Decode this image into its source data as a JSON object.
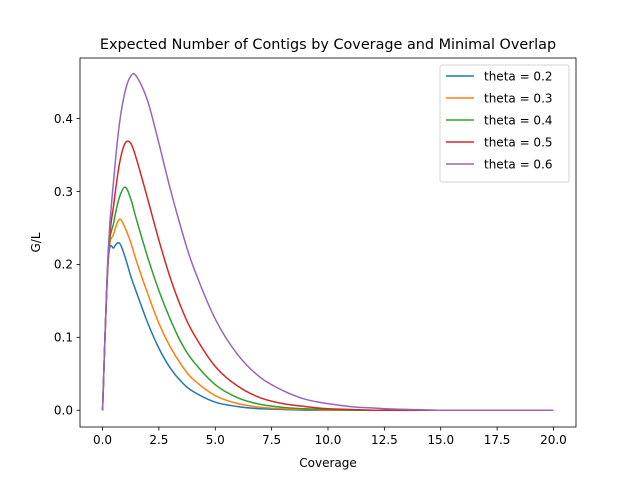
{
  "chart_data": {
    "type": "line",
    "title": "Expected Number of Contigs by Coverage and Minimal Overlap",
    "xlabel": "Coverage",
    "ylabel": "G/L",
    "xlim": [
      -1.0,
      21.0
    ],
    "ylim": [
      -0.023,
      0.483
    ],
    "xticks": [
      0.0,
      2.5,
      5.0,
      7.5,
      10.0,
      12.5,
      15.0,
      17.5,
      20.0
    ],
    "xtick_labels": [
      "0.0",
      "2.5",
      "5.0",
      "7.5",
      "10.0",
      "12.5",
      "15.0",
      "17.5",
      "20.0"
    ],
    "yticks": [
      0.0,
      0.1,
      0.2,
      0.3,
      0.4
    ],
    "ytick_labels": [
      "0.0",
      "0.1",
      "0.2",
      "0.3",
      "0.4"
    ],
    "grid": false,
    "legend_position": "top-right",
    "x": [
      0.0,
      0.25,
      0.5,
      0.75,
      1.0,
      1.25,
      1.5,
      2.0,
      2.5,
      3.0,
      3.5,
      4.0,
      5.0,
      6.0,
      7.0,
      8.0,
      9.0,
      10.0,
      11.0,
      12.0,
      13.0,
      14.0,
      15.0,
      16.0,
      17.0,
      18.0,
      19.0,
      20.0
    ],
    "series": [
      {
        "name": "theta = 0.2",
        "color": "#1f77b4",
        "values": [
          0.0,
          0.204,
          0.223,
          0.229,
          0.21,
          0.184,
          0.162,
          0.12,
          0.085,
          0.058,
          0.039,
          0.026,
          0.011,
          0.005,
          0.002,
          0.001,
          0.0,
          0.0,
          0.0,
          0.0,
          0.0,
          0.0,
          0.0,
          0.0,
          0.0,
          0.0,
          0.0,
          0.0
        ]
      },
      {
        "name": "theta = 0.3",
        "color": "#ff7f0e",
        "values": [
          0.0,
          0.205,
          0.242,
          0.262,
          0.25,
          0.23,
          0.205,
          0.16,
          0.119,
          0.087,
          0.062,
          0.043,
          0.02,
          0.009,
          0.004,
          0.002,
          0.001,
          0.0,
          0.0,
          0.0,
          0.0,
          0.0,
          0.0,
          0.0,
          0.0,
          0.0,
          0.0,
          0.0
        ]
      },
      {
        "name": "theta = 0.4",
        "color": "#2ca02c",
        "values": [
          0.0,
          0.208,
          0.258,
          0.292,
          0.306,
          0.29,
          0.262,
          0.21,
          0.164,
          0.125,
          0.092,
          0.068,
          0.035,
          0.017,
          0.008,
          0.004,
          0.002,
          0.001,
          0.0,
          0.0,
          0.0,
          0.0,
          0.0,
          0.0,
          0.0,
          0.0,
          0.0,
          0.0
        ]
      },
      {
        "name": "theta = 0.5",
        "color": "#d62728",
        "values": [
          0.0,
          0.211,
          0.283,
          0.338,
          0.366,
          0.366,
          0.345,
          0.29,
          0.233,
          0.182,
          0.14,
          0.107,
          0.06,
          0.033,
          0.017,
          0.009,
          0.005,
          0.002,
          0.001,
          0.0,
          0.0,
          0.0,
          0.0,
          0.0,
          0.0,
          0.0,
          0.0,
          0.0
        ]
      },
      {
        "name": "theta = 0.6",
        "color": "#9467bd",
        "values": [
          0.0,
          0.218,
          0.318,
          0.393,
          0.437,
          0.458,
          0.458,
          0.424,
          0.366,
          0.304,
          0.248,
          0.199,
          0.125,
          0.076,
          0.045,
          0.027,
          0.015,
          0.009,
          0.005,
          0.003,
          0.0015,
          0.0008,
          0.0,
          0.0,
          0.0,
          0.0,
          0.0,
          0.0
        ]
      }
    ]
  }
}
